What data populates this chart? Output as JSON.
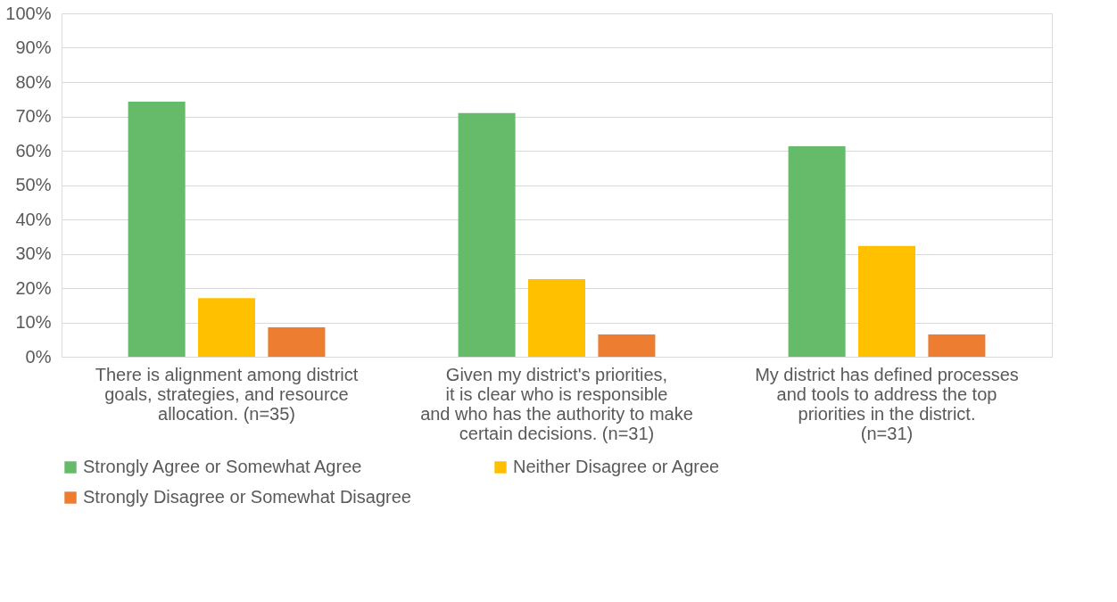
{
  "chart_data": {
    "type": "bar",
    "categories": [
      "There is alignment among district goals, strategies, and resource allocation. (n=35)",
      "Given my district's priorities, it is clear who is responsible and who has the authority to make certain decisions. (n=31)",
      "My district has defined processes and tools to address the top priorities in the district. (n=31)"
    ],
    "series": [
      {
        "name": "Strongly Agree or Somewhat Agree",
        "color": "#66bb6a",
        "values": [
          74.3,
          71.0,
          61.3
        ]
      },
      {
        "name": "Neither Disagree or Agree",
        "color": "#ffc000",
        "values": [
          17.1,
          22.6,
          32.3
        ]
      },
      {
        "name": "Strongly Disagree or Somewhat Disagree",
        "color": "#ed7d31",
        "values": [
          8.6,
          6.5,
          6.5
        ]
      }
    ],
    "ylim": [
      0,
      100
    ],
    "yticks": [
      {
        "value": 0,
        "label": "0%"
      },
      {
        "value": 10,
        "label": "10%"
      },
      {
        "value": 20,
        "label": "20%"
      },
      {
        "value": 30,
        "label": "30%"
      },
      {
        "value": 40,
        "label": "40%"
      },
      {
        "value": 50,
        "label": "50%"
      },
      {
        "value": 60,
        "label": "60%"
      },
      {
        "value": 70,
        "label": "70%"
      },
      {
        "value": 80,
        "label": "80%"
      },
      {
        "value": 90,
        "label": "90%"
      },
      {
        "value": 100,
        "label": "100%"
      }
    ],
    "grid": "y",
    "legend": "bottom"
  }
}
